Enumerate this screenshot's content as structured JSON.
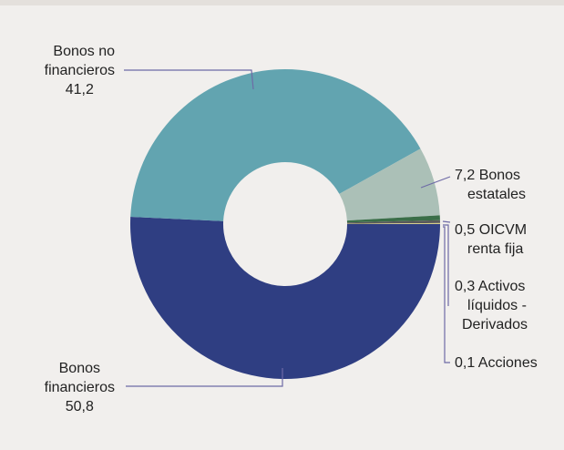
{
  "chart_data": {
    "type": "pie",
    "style": "donut",
    "title": "",
    "categories": [
      "Bonos financieros",
      "Bonos no financieros",
      "Bonos estatales",
      "OICVM renta fija",
      "Activos líquidos - Derivados",
      "Acciones"
    ],
    "values": [
      50.8,
      41.2,
      7.2,
      0.5,
      0.3,
      0.1
    ],
    "colors": [
      "#2f3e82",
      "#62a4b0",
      "#abc0b7",
      "#3a6e48",
      "#5a5a5a",
      "#d6cf8a"
    ],
    "labels": [
      {
        "lines": [
          "Bonos",
          "financieros",
          "50,8"
        ]
      },
      {
        "lines": [
          "Bonos no",
          "financieros",
          "41,2"
        ]
      },
      {
        "lines": [
          "7,2  Bonos",
          "estatales"
        ]
      },
      {
        "lines": [
          "0,5  OICVM",
          "renta fija"
        ]
      },
      {
        "lines": [
          "0,3  Activos",
          "líquidos -",
          "Derivados"
        ]
      },
      {
        "lines": [
          "0,1  Acciones"
        ]
      }
    ]
  }
}
